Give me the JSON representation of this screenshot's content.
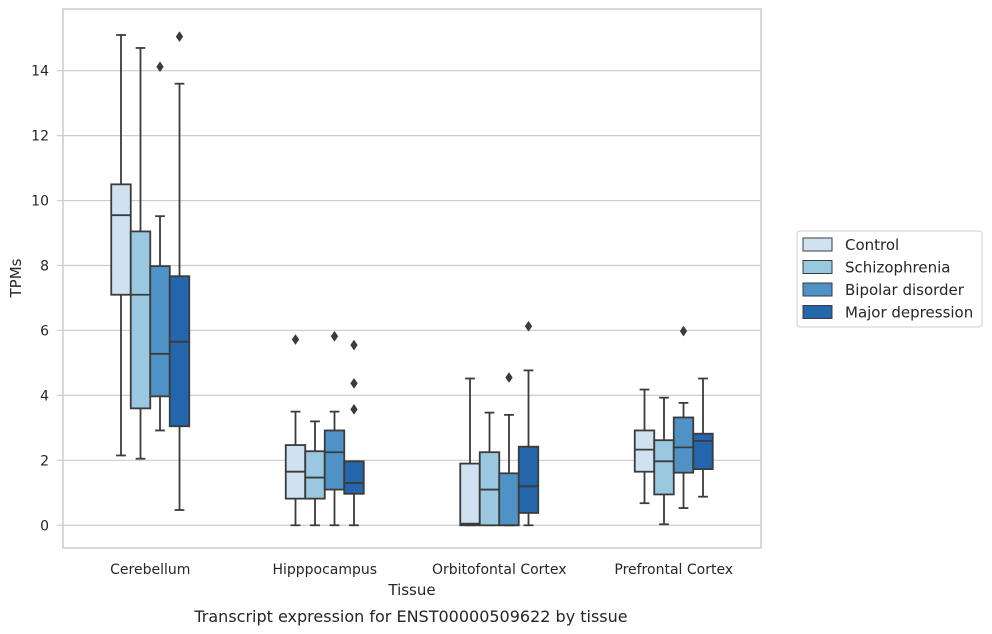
{
  "caption": "Transcript expression for ENST00000509622 by tissue",
  "chart_data": {
    "type": "box",
    "xlabel": "Tissue",
    "ylabel": "TPMs",
    "ylim": [
      -0.7,
      15.9
    ],
    "yticks": [
      0,
      2,
      4,
      6,
      8,
      10,
      12,
      14
    ],
    "grid": true,
    "legend_position": "right",
    "categories": [
      "Cerebellum",
      "Hipppocampus",
      "Orbitofontal Cortex",
      "Prefrontal Cortex"
    ],
    "series": [
      {
        "name": "Control",
        "color": "#d0e1f2",
        "boxes": [
          {
            "whislo": 2.15,
            "q1": 7.1,
            "med": 9.55,
            "q3": 10.5,
            "whishi": 15.1,
            "fliers": []
          },
          {
            "whislo": 0.0,
            "q1": 0.82,
            "med": 1.65,
            "q3": 2.47,
            "whishi": 3.5,
            "fliers": [
              5.72
            ]
          },
          {
            "whislo": 0.0,
            "q1": 0.0,
            "med": 0.05,
            "q3": 1.9,
            "whishi": 4.52,
            "fliers": []
          },
          {
            "whislo": 0.68,
            "q1": 1.65,
            "med": 2.33,
            "q3": 2.92,
            "whishi": 4.18,
            "fliers": []
          }
        ]
      },
      {
        "name": "Schizophrenia",
        "color": "#9ac8e0",
        "boxes": [
          {
            "whislo": 2.05,
            "q1": 3.6,
            "med": 7.1,
            "q3": 9.05,
            "whishi": 14.7,
            "fliers": []
          },
          {
            "whislo": 0.0,
            "q1": 0.82,
            "med": 1.47,
            "q3": 2.28,
            "whishi": 3.2,
            "fliers": []
          },
          {
            "whislo": 0.0,
            "q1": 0.0,
            "med": 1.1,
            "q3": 2.25,
            "whishi": 3.47,
            "fliers": []
          },
          {
            "whislo": 0.03,
            "q1": 0.95,
            "med": 1.97,
            "q3": 2.62,
            "whishi": 3.93,
            "fliers": []
          }
        ]
      },
      {
        "name": "Bipolar disorder",
        "color": "#4f93c6",
        "boxes": [
          {
            "whislo": 2.92,
            "q1": 3.97,
            "med": 5.28,
            "q3": 7.98,
            "whishi": 9.52,
            "fliers": [
              14.12
            ]
          },
          {
            "whislo": 0.0,
            "q1": 1.1,
            "med": 2.25,
            "q3": 2.92,
            "whishi": 3.5,
            "fliers": [
              5.82
            ]
          },
          {
            "whislo": 0.0,
            "q1": 0.0,
            "med": 0.0,
            "q3": 1.6,
            "whishi": 3.4,
            "fliers": [
              4.55
            ]
          },
          {
            "whislo": 0.53,
            "q1": 1.62,
            "med": 2.4,
            "q3": 3.32,
            "whishi": 3.77,
            "fliers": [
              5.98
            ]
          }
        ]
      },
      {
        "name": "Major depression",
        "color": "#2466ab",
        "boxes": [
          {
            "whislo": 0.47,
            "q1": 3.05,
            "med": 5.65,
            "q3": 7.67,
            "whishi": 13.6,
            "fliers": [
              15.05
            ]
          },
          {
            "whislo": 0.0,
            "q1": 0.97,
            "med": 1.3,
            "q3": 1.97,
            "whishi": 1.97,
            "fliers": [
              3.57,
              4.37,
              5.55
            ]
          },
          {
            "whislo": 0.0,
            "q1": 0.38,
            "med": 1.2,
            "q3": 2.42,
            "whishi": 4.77,
            "fliers": [
              6.13
            ]
          },
          {
            "whislo": 0.88,
            "q1": 1.73,
            "med": 2.6,
            "q3": 2.82,
            "whishi": 4.52,
            "fliers": []
          }
        ]
      }
    ]
  }
}
